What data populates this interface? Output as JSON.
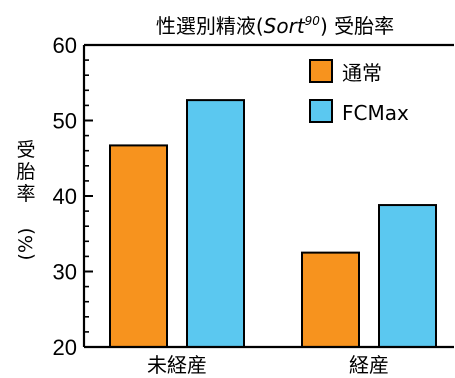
{
  "chart_data": {
    "type": "bar",
    "title_parts": {
      "before": "性選別精液(",
      "italic": "Sort",
      "sup": "90",
      "after": ") 受胎率"
    },
    "ylabel_main": "受胎率",
    "ylabel_unit": "(%)",
    "categories": [
      "未経産",
      "経産"
    ],
    "series": [
      {
        "name": "通常",
        "color": "#F7931E",
        "values": [
          46.7,
          32.5
        ]
      },
      {
        "name": "FCMax",
        "color": "#5BC8F0",
        "values": [
          52.7,
          38.8
        ]
      }
    ],
    "ylim": [
      20,
      60
    ],
    "yticks": [
      20,
      30,
      40,
      50,
      60
    ],
    "legend_position": "top-right",
    "grid": false
  }
}
